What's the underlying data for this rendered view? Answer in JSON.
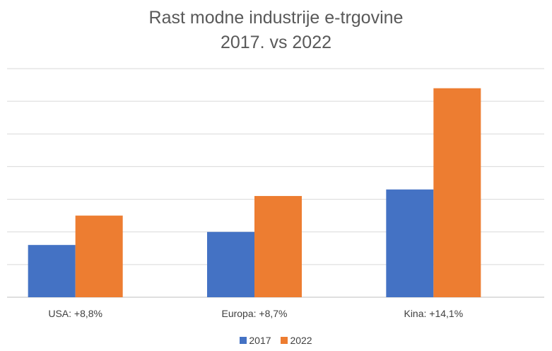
{
  "chart_data": {
    "type": "bar",
    "title": "Rast modne industrije e-trgovine",
    "subtitle": "2017. vs 2022",
    "categories": [
      "USA: +8,8%",
      "Europa: +8,7%",
      "Kina: +14,1%"
    ],
    "series": [
      {
        "name": "2017",
        "values": [
          1.6,
          2.0,
          3.3
        ],
        "color": "#4472C4"
      },
      {
        "name": "2022",
        "values": [
          2.5,
          3.1,
          6.4
        ],
        "color": "#ED7D31"
      }
    ],
    "ylim": [
      0,
      7
    ],
    "grid": true,
    "legend_position": "bottom"
  }
}
